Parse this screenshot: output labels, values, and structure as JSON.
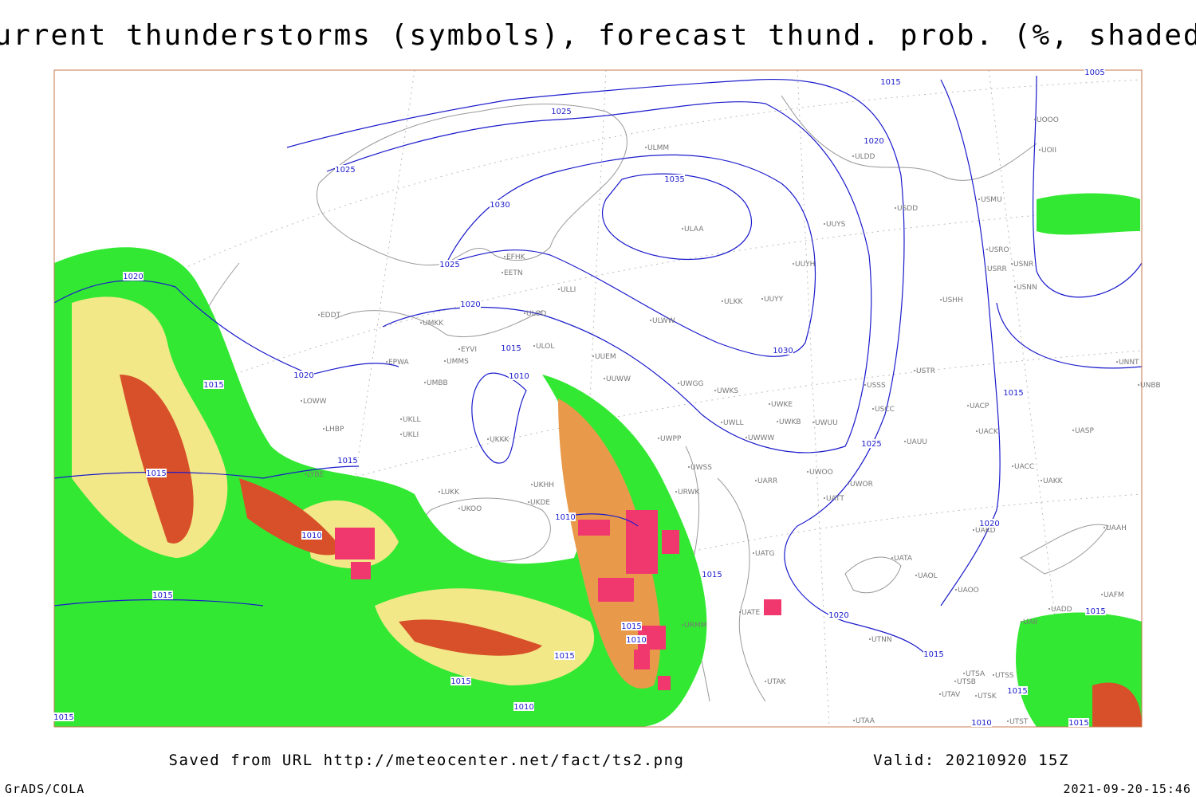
{
  "title": "Current thunderstorms (symbols), forecast thund. prob. (%, shaded)",
  "footer": {
    "source": "Saved from URL http://meteocenter.net/fact/ts2.png",
    "valid": "Valid: 20210920 15Z",
    "software": "GrADS/COLA",
    "timestamp": "2021-09-20-15:46"
  },
  "isobar_labels": [
    1025,
    1025,
    1030,
    1035,
    1015,
    1005,
    1020,
    1025,
    1020,
    1015,
    1010,
    1030,
    1020,
    1020,
    1015,
    1015,
    1015,
    1025,
    1015,
    1020,
    1015,
    1010,
    1010,
    1015,
    1010,
    1015,
    1015,
    1010,
    1015,
    1015,
    1020,
    1015,
    1015,
    1015,
    1010,
    1015
  ],
  "stations": [
    "ULMM",
    "ULAA",
    "ULDD",
    "EFHK",
    "EETN",
    "ULLI",
    "ULOD",
    "UMKK",
    "EDDT",
    "EPWA",
    "EYVI",
    "UMMS",
    "ULOL",
    "UUEM",
    "UMBB",
    "UKLL",
    "UKLI",
    "LOWW",
    "LHBP",
    "UKKK",
    "UKHH",
    "LUKK",
    "UKOO",
    "UKDE",
    "UUWW",
    "ULWW",
    "ULKK",
    "UUYY",
    "UUYH",
    "UUYS",
    "USDD",
    "USMU",
    "USRO",
    "USRR",
    "USNR",
    "USNN",
    "USHH",
    "USTR",
    "USSS",
    "USCC",
    "UAUU",
    "UACP",
    "UACK",
    "UASP",
    "UACC",
    "UAKK",
    "UAAH",
    "UAKD",
    "UATA",
    "UAOL",
    "UAOO",
    "UATT",
    "UWOR",
    "UWOO",
    "UARR",
    "UWSS",
    "UWPP",
    "UWKS",
    "UWGG",
    "UWKE",
    "UWKB",
    "UWUU",
    "UWLL",
    "UWWW",
    "URWK",
    "UATG",
    "UATE",
    "URMM",
    "UTNN",
    "UTAK",
    "UTAA",
    "UTSA",
    "UTSS",
    "UTSB",
    "UTAV",
    "UTSK",
    "UTST",
    "UAFM",
    "UADD",
    "UAII",
    "UNNT",
    "UNBB",
    "UOOO",
    "UOII",
    "LYBE"
  ]
}
